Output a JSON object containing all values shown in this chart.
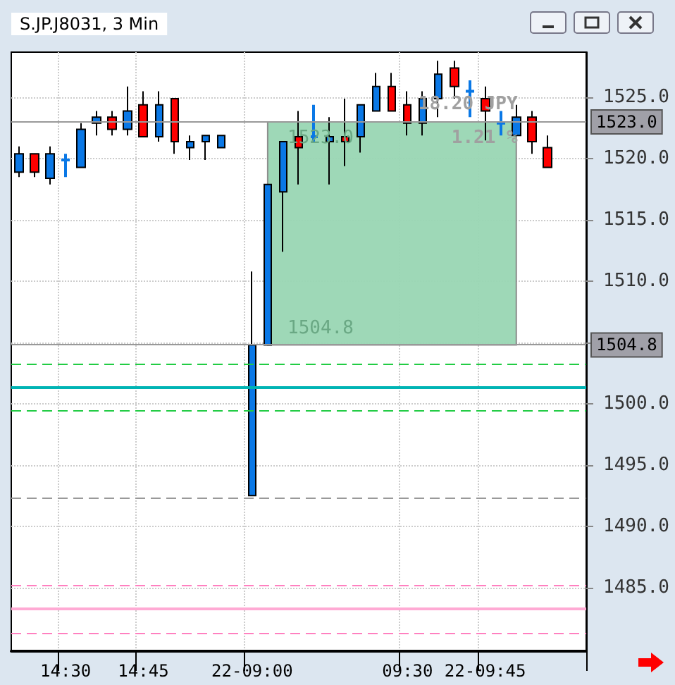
{
  "chart_data": {
    "type": "candlestick",
    "title": "S.JP.J8031, 3 Min",
    "categories": [
      null,
      null,
      null,
      "14:30",
      null,
      null,
      null,
      null,
      "14:45",
      null,
      null,
      null,
      null,
      null,
      null,
      "22-09:00",
      null,
      null,
      null,
      null,
      null,
      null,
      null,
      null,
      null,
      "09:30",
      null,
      null,
      null,
      null,
      "22-09:45",
      null,
      null,
      null,
      null,
      null,
      null
    ],
    "ohlc": [
      [
        1518.9,
        1521.0,
        1518.5,
        1520.4
      ],
      [
        1520.4,
        1520.4,
        1518.5,
        1518.9
      ],
      [
        1518.4,
        1521.0,
        1517.9,
        1520.4
      ],
      [
        1519.9,
        1520.4,
        1518.5,
        1519.9
      ],
      [
        1519.3,
        1522.9,
        1519.3,
        1522.4
      ],
      [
        1522.9,
        1523.9,
        1521.9,
        1523.4
      ],
      [
        1523.4,
        1523.9,
        1521.9,
        1522.4
      ],
      [
        1522.4,
        1525.9,
        1521.9,
        1523.9
      ],
      [
        1524.4,
        1525.5,
        1521.8,
        1521.8
      ],
      [
        1521.8,
        1525.5,
        1521.4,
        1524.4
      ],
      [
        1524.9,
        1524.9,
        1520.4,
        1521.4
      ],
      [
        1520.9,
        1521.9,
        1519.9,
        1521.4
      ],
      [
        1521.4,
        1521.9,
        1519.9,
        1521.9
      ],
      [
        1520.9,
        1521.9,
        1520.9,
        1521.9
      ],
      null,
      [
        1492.5,
        1510.8,
        1492.5,
        1504.8
      ],
      [
        1504.8,
        1517.9,
        1504.8,
        1517.9
      ],
      [
        1517.3,
        1521.4,
        1512.4,
        1521.4
      ],
      [
        1521.8,
        1523.9,
        1517.9,
        1520.9
      ],
      [
        1521.8,
        1524.4,
        1521.4,
        1521.8
      ],
      [
        1521.4,
        1523.4,
        1517.9,
        1521.8
      ],
      [
        1521.8,
        1524.9,
        1519.4,
        1521.4
      ],
      [
        1521.8,
        1524.4,
        1520.5,
        1524.4
      ],
      [
        1523.9,
        1527.0,
        1523.9,
        1525.9
      ],
      [
        1525.9,
        1527.0,
        1523.9,
        1523.9
      ],
      [
        1524.4,
        1525.5,
        1521.9,
        1522.9
      ],
      [
        1522.9,
        1525.5,
        1521.9,
        1524.9
      ],
      [
        1524.9,
        1528.0,
        1523.4,
        1526.9
      ],
      [
        1527.4,
        1528.0,
        1524.9,
        1525.9
      ],
      [
        1525.5,
        1526.4,
        1523.4,
        1525.5
      ],
      [
        1524.9,
        1525.9,
        1521.5,
        1523.9
      ],
      [
        1522.9,
        1523.9,
        1521.9,
        1522.9
      ],
      [
        1521.9,
        1524.4,
        1521.9,
        1523.4
      ],
      [
        1523.4,
        1523.9,
        1520.4,
        1521.4
      ],
      [
        1520.9,
        1521.9,
        1519.3,
        1519.3
      ],
      null,
      null
    ],
    "colors": [
      "#0a78e6",
      "#ff0000",
      "#0a78e6",
      "#0a78e6",
      "#0a78e6",
      "#0a78e6",
      "#ff0000",
      "#0a78e6",
      "#ff0000",
      "#0a78e6",
      "#ff0000",
      "#0a78e6",
      "#0a78e6",
      "#0a78e6",
      null,
      "#0a78e6",
      "#0a78e6",
      "#0a78e6",
      "#ff0000",
      "#0a78e6",
      "#0a78e6",
      "#ff0000",
      "#0a78e6",
      "#0a78e6",
      "#ff0000",
      "#ff0000",
      "#0a78e6",
      "#0a78e6",
      "#ff0000",
      "#0a78e6",
      "#ff0000",
      "#0a78e6",
      "#0a78e6",
      "#ff0000",
      "#ff0000",
      null,
      null
    ],
    "ylim": [
      1479.8,
      1528.7
    ],
    "yticks": [
      {
        "value": 1485,
        "label": "1485.0"
      },
      {
        "value": 1490,
        "label": "1490.0"
      },
      {
        "value": 1495,
        "label": "1495.0"
      },
      {
        "value": 1500,
        "label": "1500.0"
      },
      {
        "value": 1505,
        "label": null
      },
      {
        "value": 1510,
        "label": "1510.0"
      },
      {
        "value": 1515,
        "label": "1515.0"
      },
      {
        "value": 1520,
        "label": "1520.0"
      },
      {
        "value": 1525,
        "label": "1525.0"
      }
    ],
    "grid": true,
    "ref_lines": [
      {
        "axis": "y",
        "value": 1523.0,
        "label": "1523.0",
        "color": "#999999",
        "line_style": "solid"
      },
      {
        "axis": "y",
        "value": 1504.8,
        "label": "1504.8",
        "color": "#999999",
        "line_style": "solid"
      },
      {
        "axis": "y",
        "value": 1503.2,
        "color": "#22cc44",
        "line_style": "dashed"
      },
      {
        "axis": "y",
        "value": 1501.4,
        "color": "#00b4b4",
        "line_style": "solid"
      },
      {
        "axis": "y",
        "value": 1499.5,
        "color": "#22cc44",
        "line_style": "dashed"
      },
      {
        "axis": "y",
        "value": 1492.3,
        "color": "#999999",
        "line_style": "dashed"
      },
      {
        "axis": "y",
        "value": 1485.2,
        "color": "#ff80c0",
        "line_style": "dashed"
      },
      {
        "axis": "y",
        "value": 1483.3,
        "color": "#ffaad4",
        "line_style": "solid"
      },
      {
        "axis": "y",
        "value": 1481.3,
        "color": "#ff80c0",
        "line_style": "dashed"
      }
    ],
    "bands": [
      {
        "axis": "y",
        "from": 1504.8,
        "to": 1523.0,
        "color": "#99d6b3"
      }
    ],
    "annotations": [
      {
        "text": "1523.0",
        "y": 1523.0
      },
      {
        "text": "1504.8",
        "y": 1504.8
      },
      {
        "text": "18.20 JPY",
        "y": 1523.0
      },
      {
        "text": "1.21 %",
        "y": 1523.0
      }
    ]
  }
}
